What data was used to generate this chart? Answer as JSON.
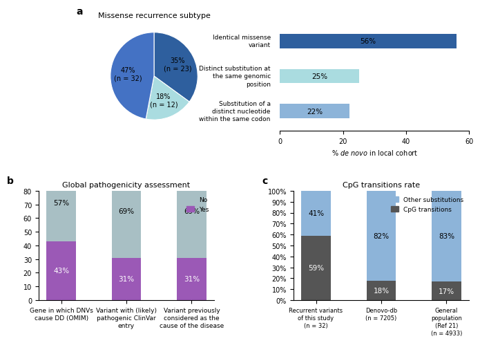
{
  "panel_a": {
    "title": "Missense recurrence subtype",
    "pie_values": [
      35,
      18,
      47
    ],
    "pie_labels": [
      "35%\n(n = 23)",
      "18%\n(n = 12)",
      "47%\n(n = 32)"
    ],
    "pie_colors": [
      "#2e5f9e",
      "#aadce0",
      "#4472c4"
    ],
    "legend_labels": [
      "Identical missense\nvariant",
      "Distinct substitution at\nthe same genomic\nposition",
      "Substitution of a\ndistinct nucleotide\nwithin the same codon"
    ],
    "bar_values": [
      56,
      25,
      22
    ],
    "bar_colors": [
      "#2e5f9e",
      "#aadce0",
      "#8db4d9"
    ],
    "bar_xlim": [
      0,
      60
    ]
  },
  "panel_b": {
    "title": "Global pathogenicity assessment",
    "categories": [
      "Gene in which DNVs\ncause DD (OMIM)",
      "Variant with (likely)\npathogenic ClinVar\nentry",
      "Variant previously\nconsidered as the\ncause of the disease"
    ],
    "yes_values": [
      43,
      31,
      31
    ],
    "no_values": [
      57,
      69,
      69
    ],
    "yes_color": "#9b59b6",
    "no_color": "#a8bfc4",
    "ylim": [
      0,
      80
    ],
    "yticks": [
      0,
      10,
      20,
      30,
      40,
      50,
      60,
      70,
      80
    ]
  },
  "panel_c": {
    "title": "CpG transitions rate",
    "categories": [
      "Recurrent variants\nof this study\n(n = 32)",
      "Denovo-db\n(n = 7205)",
      "General\npopulation\n(Ref 21)\n(n = 4933)"
    ],
    "cpg_values": [
      59,
      18,
      17
    ],
    "other_values": [
      41,
      82,
      83
    ],
    "cpg_color": "#555555",
    "other_color": "#8db4d9",
    "ytick_labels": [
      "0%",
      "10%",
      "20%",
      "30%",
      "40%",
      "50%",
      "60%",
      "70%",
      "80%",
      "90%",
      "100%"
    ]
  }
}
